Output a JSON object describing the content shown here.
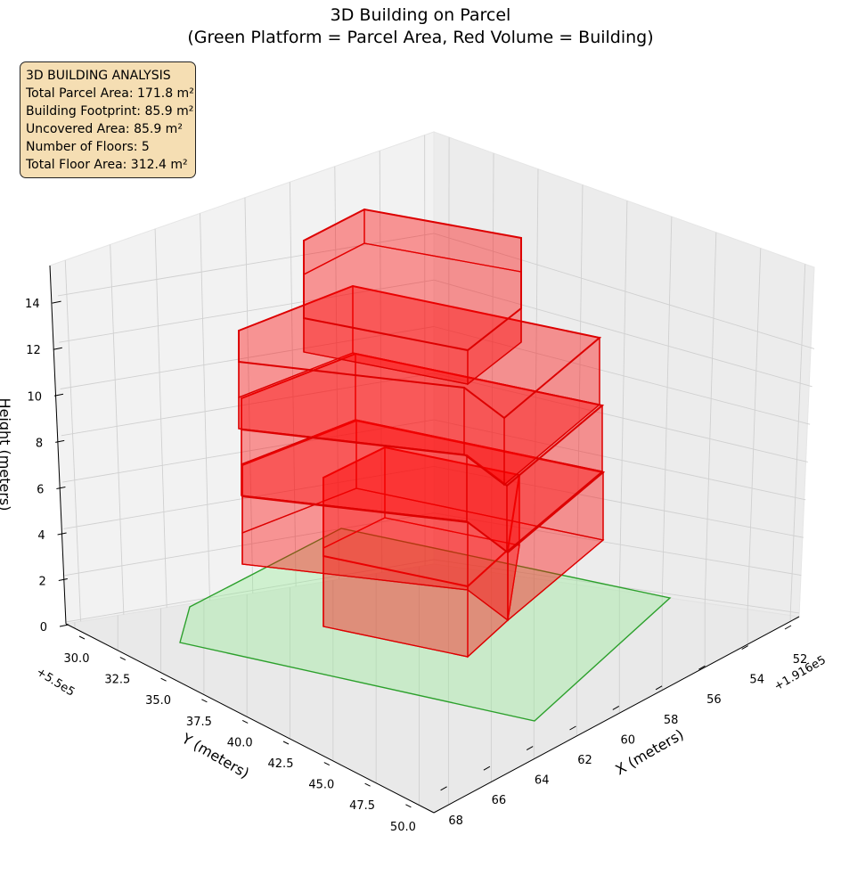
{
  "title_line1": "3D Building on Parcel",
  "title_line2": "(Green Platform = Parcel Area, Red Volume = Building)",
  "info_box": {
    "heading": "3D BUILDING ANALYSIS",
    "lines": [
      "Total Parcel Area: 171.8 m²",
      "Building Footprint: 85.9 m²",
      "Uncovered Area: 85.9 m²",
      "Number of Floors: 5",
      "Total Floor Area: 312.4 m²"
    ]
  },
  "colors": {
    "parcel_fill": "#90ee90",
    "parcel_edge": "#2ca02c",
    "building_fill": "#ff0000",
    "building_edge": "#dd0000",
    "info_box_bg": "#f5deb3"
  },
  "chart_data": {
    "type": "3d-polygon",
    "title": "3D Building on Parcel\n(Green Platform = Parcel Area, Red Volume = Building)",
    "x_axis": {
      "label": "X (meters)",
      "offset_text": "+1.916e5",
      "ticks": [
        "52",
        "54",
        "56",
        "58",
        "60",
        "62",
        "64",
        "66",
        "68"
      ]
    },
    "y_axis": {
      "label": "Y (meters)",
      "offset_text": "+5.5e5",
      "ticks": [
        "30.0",
        "32.5",
        "35.0",
        "37.5",
        "40.0",
        "42.5",
        "45.0",
        "47.5",
        "50.0"
      ]
    },
    "z_axis": {
      "label": "Height (meters)",
      "ticks": [
        "0",
        "2",
        "4",
        "6",
        "8",
        "10",
        "12",
        "14"
      ]
    },
    "grid": true,
    "series": [
      {
        "name": "Parcel Area",
        "kind": "platform",
        "z": 0
      },
      {
        "name": "Building",
        "kind": "volume",
        "floors": 5
      }
    ]
  }
}
